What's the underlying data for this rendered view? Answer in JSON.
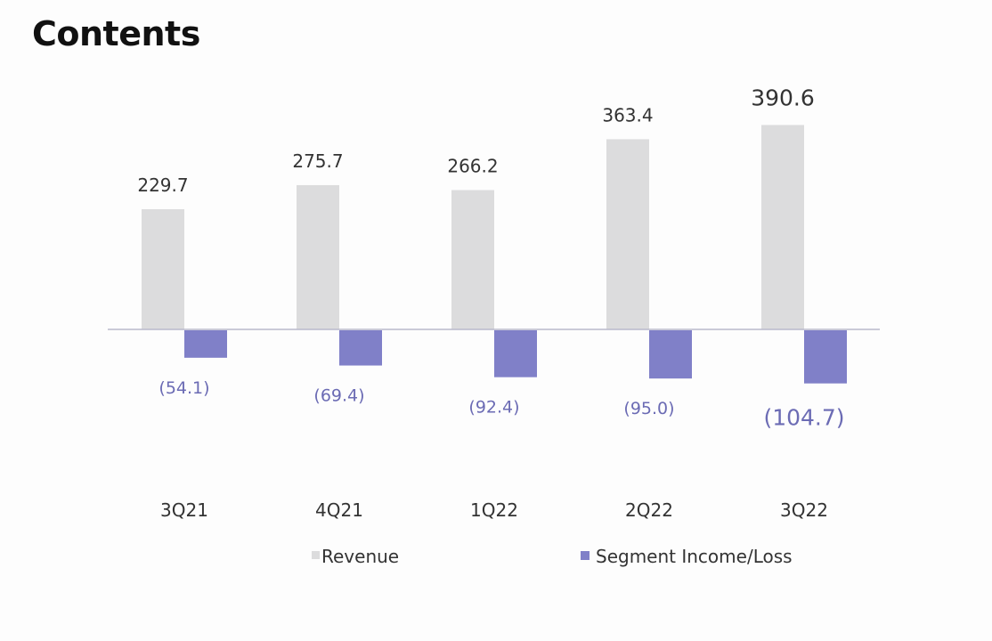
{
  "title": "Contents",
  "chart_data": {
    "type": "bar",
    "categories": [
      "3Q21",
      "4Q21",
      "1Q22",
      "2Q22",
      "3Q22"
    ],
    "series": [
      {
        "name": "Revenue",
        "values": [
          229.7,
          275.7,
          266.2,
          363.4,
          390.6
        ],
        "labels": [
          "229.7",
          "275.7",
          "266.2",
          "363.4",
          "390.6"
        ],
        "color": "#dcdcdd"
      },
      {
        "name": "Segment Income/Loss",
        "values": [
          -54.1,
          -69.4,
          -92.4,
          -95.0,
          -104.7
        ],
        "labels": [
          "(54.1)",
          "(69.4)",
          "(92.4)",
          "(95.0)",
          "(104.7)"
        ],
        "color": "#8080c8"
      }
    ],
    "title": "",
    "xlabel": "",
    "ylabel": "",
    "ylim": [
      -105,
      400
    ],
    "grid": false,
    "legend_position": "bottom",
    "legend": {
      "revenue_label": "Revenue",
      "segment_label": "Segment Income/Loss"
    },
    "colors": {
      "revenue": "#dcdcdd",
      "segment": "#8080c8",
      "revenue_label_text": "#333333",
      "segment_label_text": "#6b6bb4",
      "axis_line": "#b9b9cc",
      "category_text": "#333333"
    }
  }
}
